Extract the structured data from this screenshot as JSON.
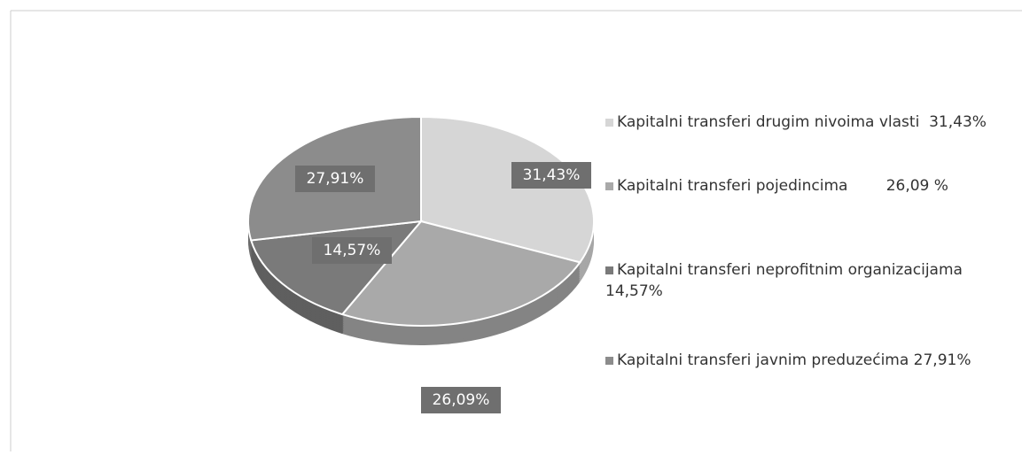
{
  "chart_data": {
    "type": "pie",
    "categories": [
      "Kapitalni transferi drugim nivoima vlasti  31,43%",
      "Kapitalni transferi pojedincima        26,09 %",
      "Kapitalni transferi neprofitnim organizacijama 14,57%",
      "Kapitalni transferi javnim preduzećima 27,91%"
    ],
    "values": [
      31.43,
      26.09,
      14.57,
      27.91
    ],
    "value_labels": [
      "31,43%",
      "26,09%",
      "14,57%",
      "27,91%"
    ],
    "colors": [
      "#d6d6d6",
      "#a9a9a9",
      "#7a7a7a",
      "#8c8c8c"
    ]
  }
}
